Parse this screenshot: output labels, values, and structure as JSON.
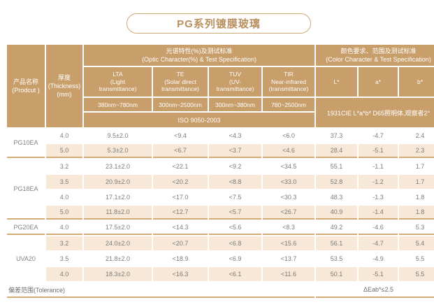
{
  "title": "PG系列镀膜玻璃",
  "colors": {
    "header_bg": "#c89e6b",
    "stripe_bg": "#f7e8d7",
    "separator": "#d3a976",
    "title_text": "#b9905e",
    "data_text": "#7b7b77"
  },
  "table": {
    "product_header": {
      "zh": "产品名称",
      "en": "(Prodcut )"
    },
    "thickness_header": {
      "zh": "厚度",
      "en": "(Thickness)",
      "unit": "(mm)"
    },
    "optic_group": {
      "zh": "光谱特性(%)及测试标准",
      "en": "(Optic Character(%) & Test Specification)"
    },
    "color_group": {
      "zh": "颜色要求、范围及测试标准",
      "en": "(Color Character & Test Specification)"
    },
    "optic_columns": [
      {
        "abbr": "LTA",
        "desc1": "(Light",
        "desc2": "transmittance)",
        "range": "380nm~780nm"
      },
      {
        "abbr": "TE",
        "desc1": "(Solar direct",
        "desc2": "transmittance)",
        "range": "300nm~2500nm"
      },
      {
        "abbr": "TUV",
        "desc1": "(UV-",
        "desc2": "transmittance)",
        "range": "300nm~380nm"
      },
      {
        "abbr": "TIR",
        "desc1": "Near-infrared",
        "desc2": "(transmittance)",
        "range": "780~2500nm"
      }
    ],
    "color_columns": [
      "L*",
      "a*",
      "b*"
    ],
    "optic_standard": "ISO 9050-2003",
    "color_standard": "1931CIE L*a*b*  D65照明体,观察者2°",
    "groups": [
      {
        "product": "PG10EA",
        "rows": [
          {
            "thickness": "4.0",
            "lta": "9.5±2.0",
            "te": "<9.4",
            "tuv": "<4.3",
            "tir": "<6.0",
            "l": "37.3",
            "a": "-4.7",
            "b": "2.4"
          },
          {
            "thickness": "5.0",
            "lta": "5.3±2.0",
            "te": "<6.7",
            "tuv": "<3.7",
            "tir": "<4.6",
            "l": "28.4",
            "a": "-5.1",
            "b": "2.3"
          }
        ]
      },
      {
        "product": "PG18EA",
        "rows": [
          {
            "thickness": "3.2",
            "lta": "23.1±2.0",
            "te": "<22.1",
            "tuv": "<9.2",
            "tir": "<34.5",
            "l": "55.1",
            "a": "-1.1",
            "b": "1.7"
          },
          {
            "thickness": "3.5",
            "lta": "20.9±2.0",
            "te": "<20.2",
            "tuv": "<8.8",
            "tir": "<33.0",
            "l": "52.8",
            "a": "-1.2",
            "b": "1.7"
          },
          {
            "thickness": "4.0",
            "lta": "17.1±2.0",
            "te": "<17.0",
            "tuv": "<7.5",
            "tir": "<30.3",
            "l": "48.3",
            "a": "-1.3",
            "b": "1.8"
          },
          {
            "thickness": "5.0",
            "lta": "11.8±2.0",
            "te": "<12.7",
            "tuv": "<5.7",
            "tir": "<26.7",
            "l": "40.9",
            "a": "-1.4",
            "b": "1.8"
          }
        ]
      },
      {
        "product": "PG20EA",
        "rows": [
          {
            "thickness": "4.0",
            "lta": "17.5±2.0",
            "te": "<14.3",
            "tuv": "<5.6",
            "tir": "<8.3",
            "l": "49.2",
            "a": "-4.6",
            "b": "5.3"
          }
        ]
      },
      {
        "product": "UVA20",
        "rows": [
          {
            "thickness": "3.2",
            "lta": "24.0±2.0",
            "te": "<20.7",
            "tuv": "<6.8",
            "tir": "<15.6",
            "l": "56.1",
            "a": "-4.7",
            "b": "5.4"
          },
          {
            "thickness": "3.5",
            "lta": "21.8±2.0",
            "te": "<18.9",
            "tuv": "<6.9",
            "tir": "<13.7",
            "l": "53.5",
            "a": "-4.9",
            "b": "5.5"
          },
          {
            "thickness": "4.0",
            "lta": "18.3±2.0",
            "te": "<16.3",
            "tuv": "<6.1",
            "tir": "<11.6",
            "l": "50.1",
            "a": "-5.1",
            "b": "5.5"
          }
        ]
      }
    ],
    "footer": {
      "tolerance": "偏差范围(Tolerance)",
      "delta": "ΔEab*≤2.5"
    }
  }
}
